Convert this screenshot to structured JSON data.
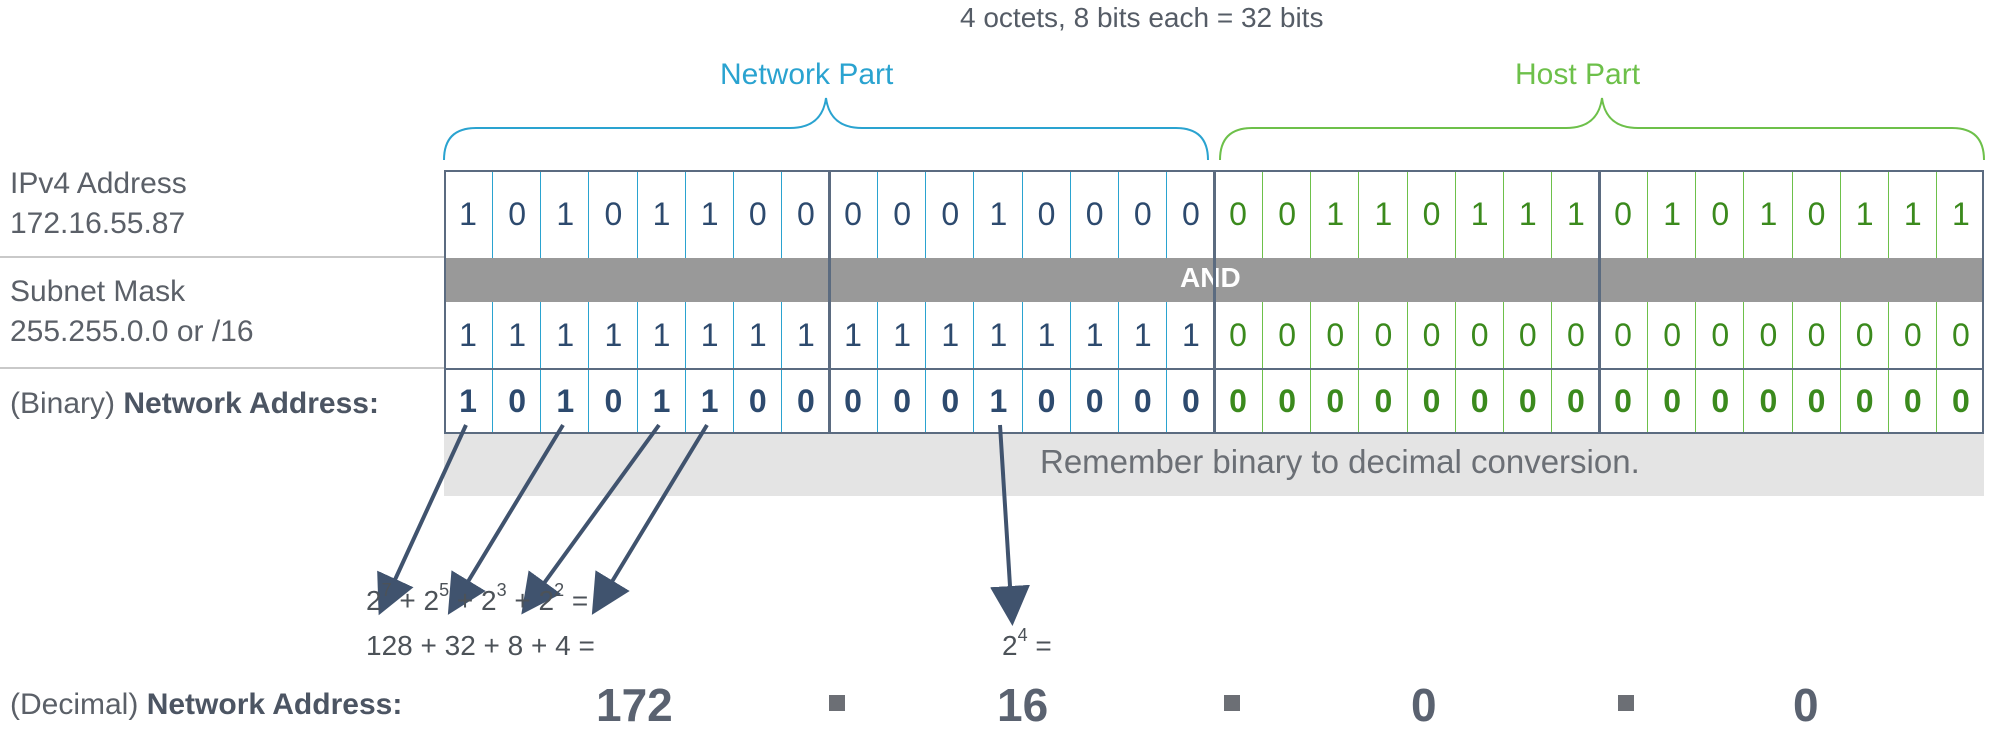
{
  "title": "4 octets, 8 bits each = 32 bits",
  "network_part_label": "Network Part",
  "host_part_label": "Host Part",
  "colors": {
    "network": "#2aa3d0",
    "host": "#6dc04a",
    "network_bit": "#2d4a6e",
    "host_bit": "#3b8a1d",
    "and_bar": "#999999",
    "note_bar": "#e4e4e4"
  },
  "rows": {
    "ipv4": {
      "label_line1": "IPv4 Address",
      "label_line2": "172.16.55.87",
      "bits": "10101100000100000011011101010111"
    },
    "mask": {
      "label_line1": "Subnet Mask",
      "label_line2": "255.255.0.0 or /16",
      "bits": "11111111111111110000000000000000"
    },
    "network": {
      "label_prefix": "(Binary)",
      "label_bold": "Network Address:",
      "bits": "10101100000100000000000000000000"
    }
  },
  "and_label": "AND",
  "note": "Remember binary to decimal conversion.",
  "calc1": {
    "p1": "2",
    "e1": "7",
    "p2": "2",
    "e2": "5",
    "p3": "2",
    "e3": "3",
    "p4": "2",
    "e4": "2",
    "tail": " =",
    "line2": "128 + 32 + 8 + 4 ="
  },
  "calc2": {
    "base": "2",
    "exp": "4",
    "tail": " ="
  },
  "decimal": {
    "label_prefix": "(Decimal)",
    "label_bold": "Network Address:",
    "octets": [
      "172",
      "16",
      "0",
      "0"
    ]
  }
}
